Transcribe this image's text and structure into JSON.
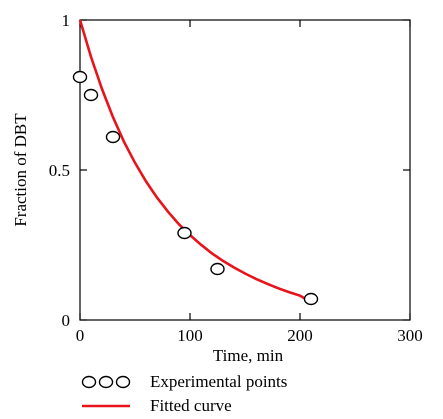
{
  "chart_data": {
    "type": "scatter",
    "xlabel": "Time, min",
    "ylabel": "Fraction of DBT",
    "xlim": [
      0,
      300
    ],
    "ylim": [
      0,
      1
    ],
    "x_ticks": [
      {
        "value": 0,
        "label": "0"
      },
      {
        "value": 100,
        "label": "100"
      },
      {
        "value": 200,
        "label": "200"
      },
      {
        "value": 300,
        "label": "300"
      }
    ],
    "y_ticks": [
      {
        "value": 0,
        "label": "0"
      },
      {
        "value": 0.5,
        "label": "0.5"
      },
      {
        "value": 1,
        "label": "1"
      }
    ],
    "grid": false,
    "legend_position": "bottom",
    "series": [
      {
        "name": "Experimental points",
        "kind": "markers",
        "marker": "open-circle",
        "color": "#000000",
        "points": [
          {
            "x": 0,
            "y": 0.81
          },
          {
            "x": 10,
            "y": 0.75
          },
          {
            "x": 30,
            "y": 0.61
          },
          {
            "x": 95,
            "y": 0.29
          },
          {
            "x": 125,
            "y": 0.17
          },
          {
            "x": 210,
            "y": 0.07
          }
        ]
      },
      {
        "name": "Fitted curve",
        "kind": "line",
        "color": "#e8141b",
        "x": [
          0,
          10,
          20,
          30,
          40,
          50,
          60,
          70,
          80,
          90,
          100,
          110,
          120,
          130,
          140,
          150,
          160,
          170,
          180,
          190,
          200,
          210
        ],
        "y": [
          1.0,
          0.877,
          0.77,
          0.676,
          0.594,
          0.524,
          0.462,
          0.408,
          0.361,
          0.319,
          0.283,
          0.251,
          0.222,
          0.197,
          0.175,
          0.155,
          0.137,
          0.121,
          0.106,
          0.093,
          0.081,
          0.06
        ]
      }
    ],
    "legend": [
      {
        "label": "Experimental points",
        "symbol": "ooo"
      },
      {
        "label": "Fitted curve",
        "symbol": "line"
      }
    ]
  }
}
